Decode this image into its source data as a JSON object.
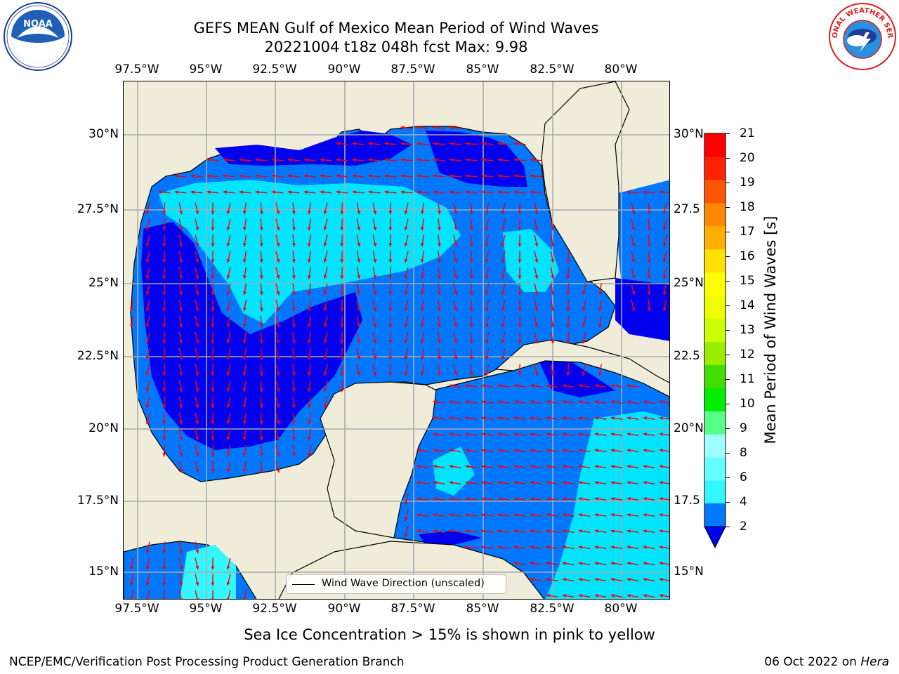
{
  "title_line1": "GEFS MEAN Gulf of Mexico Mean Period of Wind Waves",
  "title_line2": "20221004 t18z 048h fcst   Max: 9.98",
  "lon_ticks": [
    "97.5°W",
    "95°W",
    "92.5°W",
    "90°W",
    "87.5°W",
    "85°W",
    "82.5°W",
    "80°W"
  ],
  "lon_ticks_top": [
    "97.5°W",
    "95°W",
    "92.5°W",
    "90°W",
    "87.5°W",
    "85°W",
    "82.5°W",
    "80°W"
  ],
  "lat_ticks": [
    "30°N",
    "27.5°N",
    "25°N",
    "22.5°N",
    "20°N",
    "17.5°N",
    "15°N"
  ],
  "lat_ticks_right": [
    "30°N",
    "27.5",
    "25°N",
    "22.5",
    "20°N",
    "17.5",
    "15°N"
  ],
  "legend_label": "Wind Wave Direction (unscaled)",
  "colorbar": {
    "label": "Mean Period of Wind Waves [s]",
    "ticks": [
      "2",
      "4",
      "6",
      "8",
      "9",
      "10",
      "11",
      "12",
      "13",
      "14",
      "15",
      "16",
      "17",
      "18",
      "19",
      "20",
      "21"
    ],
    "colors": [
      "#0077ff",
      "#00e5ff",
      "#33f6ff",
      "#66ffff",
      "#a0ffff",
      "#55ff88",
      "#00ee00",
      "#44dd00",
      "#99ee00",
      "#ccff00",
      "#eeff00",
      "#ffff00",
      "#ffe000",
      "#ffb000",
      "#ff8800",
      "#ff5500",
      "#ff2200",
      "#ff0000"
    ],
    "under_color": "#0000ee"
  },
  "sea_ice_note": "Sea Ice Concentration > 15% is shown in pink to yellow",
  "footer_left": "NCEP/EMC/Verification Post Processing Product Generation Branch",
  "footer_date": "06 Oct 2022 on ",
  "footer_host": "Hera",
  "logos": {
    "left": "NOAA",
    "right": "NATIONAL WEATHER SERVICE"
  },
  "colors": {
    "land": "#efedda",
    "level_lt2": "#0000ee",
    "level_2_4": "#0077ff",
    "level_4_6": "#00e5ff",
    "level_6_8": "#33f6ff",
    "arrow": "#ff0000"
  }
}
